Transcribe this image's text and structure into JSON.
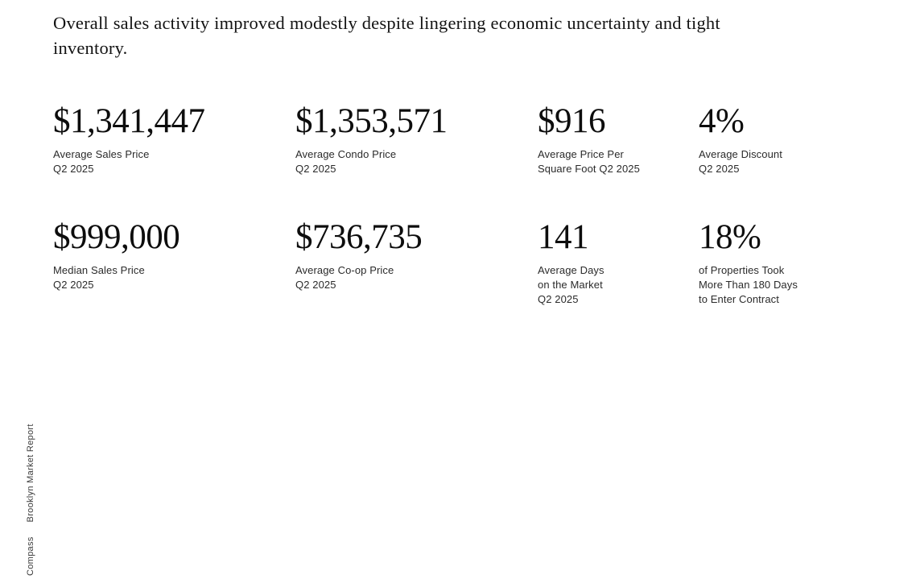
{
  "headline": "Overall sales activity improved modestly despite lingering economic uncertainty and tight\ninventory.",
  "sidebar": {
    "brand": "Compass",
    "report_title": "Brooklyn Market Report"
  },
  "stats": [
    {
      "value": "$1,341,447",
      "label": "Average Sales Price\nQ2 2025"
    },
    {
      "value": "$1,353,571",
      "label": "Average Condo Price\nQ2 2025"
    },
    {
      "value": "$916",
      "label": "Average Price Per\nSquare Foot Q2 2025"
    },
    {
      "value": "4%",
      "label": "Average Discount\nQ2 2025"
    },
    {
      "value": "$999,000",
      "label": "Median Sales Price\nQ2 2025"
    },
    {
      "value": "$736,735",
      "label": "Average Co-op Price\nQ2 2025"
    },
    {
      "value": "141",
      "label": "Average Days\non the Market\nQ2 2025"
    },
    {
      "value": "18%",
      "label": "of Properties Took\nMore Than 180 Days\nto Enter Contract"
    }
  ],
  "colors": {
    "background": "#ffffff",
    "headline_text": "#131313",
    "stat_value_text": "#0d0d0d",
    "stat_label_text": "#2b2b2b",
    "side_text": "#3a3a3a"
  }
}
